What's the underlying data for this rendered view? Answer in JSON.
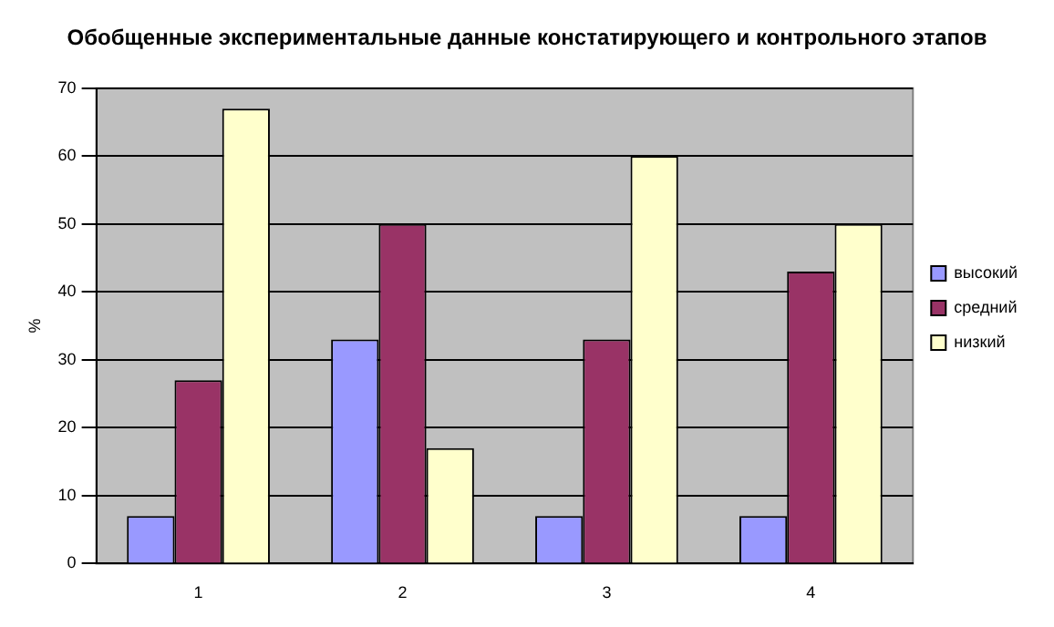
{
  "chart_data": {
    "type": "bar",
    "title": "Обобщенные экспериментальные данные констатирующего и контрольного этапов",
    "ylabel": "%",
    "categories": [
      "1",
      "2",
      "3",
      "4"
    ],
    "series": [
      {
        "name": "высокий",
        "color": "#9999ff",
        "values": [
          7,
          33,
          7,
          7
        ]
      },
      {
        "name": "средний",
        "color": "#993366",
        "values": [
          27,
          50,
          33,
          43
        ]
      },
      {
        "name": "низкий",
        "color": "#ffffcc",
        "values": [
          67,
          17,
          60,
          50
        ]
      }
    ],
    "ylim": [
      0,
      70
    ],
    "yticks": [
      0,
      10,
      20,
      30,
      40,
      50,
      60,
      70
    ],
    "grid": "y",
    "legend": "right"
  }
}
